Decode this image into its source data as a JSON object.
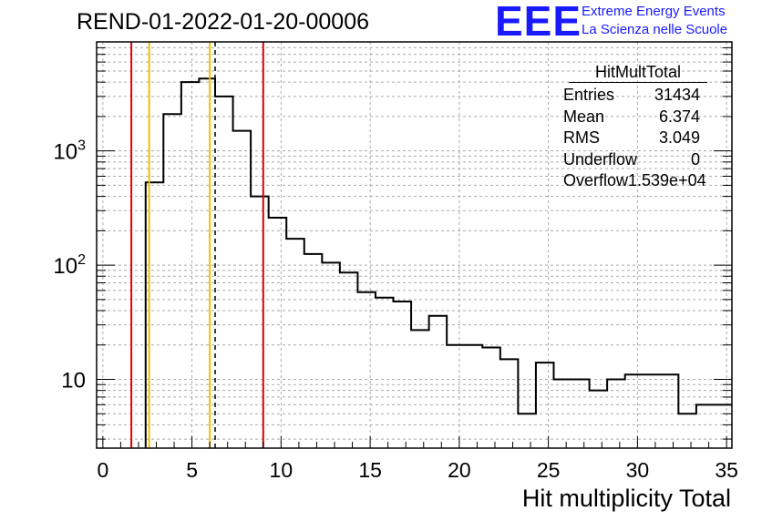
{
  "header": {
    "title": "REND-01-2022-01-20-00006",
    "logo_text": "EEE",
    "logo_line1": "Extreme Energy Events",
    "logo_line2": "La Scienza nelle Scuole"
  },
  "stats": {
    "title": "HitMultTotal",
    "rows": [
      {
        "label": "Entries",
        "value": "31434"
      },
      {
        "label": "Mean",
        "value": "6.374"
      },
      {
        "label": "RMS",
        "value": "3.049"
      },
      {
        "label": "Underflow",
        "value": "0"
      },
      {
        "label": "Overflow",
        "value": "1.539e+04"
      }
    ]
  },
  "colors": {
    "histogram": "#000000",
    "red_lines": "#dd0000",
    "yellow_lines": "#f0c000",
    "grid": "#aaaaaa"
  },
  "chart_data": {
    "type": "histogram",
    "title": "REND-01-2022-01-20-00006",
    "xlabel": "Hit multiplicity Total",
    "ylabel": "",
    "log_y": true,
    "grid": true,
    "xlim": [
      -0.35,
      35.3
    ],
    "ylim": [
      2.5,
      9000
    ],
    "xticks": [
      "0",
      "5",
      "10",
      "15",
      "20",
      "25",
      "30",
      "35"
    ],
    "yticks": [
      "10",
      "10^2",
      "10^3"
    ],
    "bin_edges": [
      2.4,
      3.4,
      4.4,
      5.4,
      6.3,
      7.3,
      8.3,
      9.3,
      10.3,
      11.3,
      12.3,
      13.3,
      14.3,
      15.3,
      16.3,
      17.3,
      18.3,
      19.3,
      20.3,
      21.3,
      22.3,
      23.3,
      24.3,
      25.3,
      26.3,
      27.3,
      28.3,
      29.3,
      30.3,
      31.3,
      32.3,
      33.3,
      34.3,
      35.3
    ],
    "bin_values": [
      530,
      2100,
      4000,
      4300,
      3000,
      1500,
      400,
      260,
      170,
      125,
      105,
      86,
      58,
      52,
      48,
      27,
      36,
      20,
      20,
      19,
      15,
      5,
      14,
      10,
      10,
      8,
      10,
      11,
      11,
      11,
      5,
      6,
      6
    ],
    "vlines": [
      {
        "x": 1.6,
        "color": "red",
        "style": "solid"
      },
      {
        "x": 2.6,
        "color": "yellow",
        "style": "solid"
      },
      {
        "x": 6.0,
        "color": "yellow",
        "style": "solid"
      },
      {
        "x": 6.3,
        "color": "black",
        "style": "dashed"
      },
      {
        "x": 9.0,
        "color": "red",
        "style": "solid"
      }
    ]
  }
}
